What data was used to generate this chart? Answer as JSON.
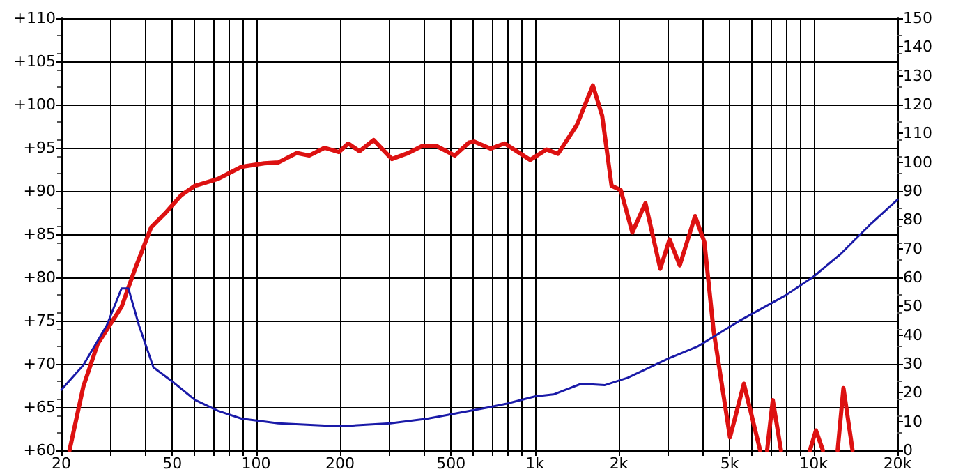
{
  "chart_data": {
    "type": "line",
    "log": "x",
    "grid": true,
    "marker": "none",
    "line_style": "solid",
    "xlim": [
      20,
      20000
    ],
    "xticks": [
      20,
      {
        "value": 30,
        "label": null
      },
      {
        "value": 40,
        "label": null
      },
      50,
      {
        "value": 60,
        "label": null
      },
      {
        "value": 70,
        "label": null
      },
      {
        "value": 80,
        "label": null
      },
      {
        "value": 90,
        "label": null
      },
      100,
      200,
      {
        "value": 300,
        "label": null
      },
      {
        "value": 400,
        "label": null
      },
      500,
      {
        "value": 600,
        "label": null
      },
      {
        "value": 700,
        "label": null
      },
      {
        "value": 800,
        "label": null
      },
      {
        "value": 900,
        "label": null
      },
      {
        "value": 1000,
        "label": "1k"
      },
      {
        "value": 2000,
        "label": "2k"
      },
      {
        "value": 3000,
        "label": null
      },
      {
        "value": 4000,
        "label": null
      },
      {
        "value": 5000,
        "label": "5k"
      },
      {
        "value": 6000,
        "label": null
      },
      {
        "value": 7000,
        "label": null
      },
      {
        "value": 8000,
        "label": null
      },
      {
        "value": 9000,
        "label": null
      },
      {
        "value": 10000,
        "label": "10k"
      },
      {
        "value": 20000,
        "label": "20k"
      }
    ],
    "ylim": [
      60,
      110
    ],
    "yticks": [
      {
        "value": 60,
        "label": "+60"
      },
      {
        "value": 65,
        "label": "+65"
      },
      {
        "value": 70,
        "label": "+70"
      },
      {
        "value": 75,
        "label": "+75"
      },
      {
        "value": 80,
        "label": "+80"
      },
      {
        "value": 85,
        "label": "+85"
      },
      {
        "value": 90,
        "label": "+90"
      },
      {
        "value": 95,
        "label": "+95"
      },
      {
        "value": 100,
        "label": "+100"
      },
      {
        "value": 105,
        "label": "+105"
      },
      {
        "value": 110,
        "label": "+110"
      }
    ],
    "y2lim": [
      0,
      150
    ],
    "y2ticks": [
      0,
      10,
      20,
      30,
      40,
      50,
      60,
      70,
      80,
      90,
      100,
      110,
      120,
      130,
      140,
      150
    ],
    "series": [
      {
        "color": "#dd1111",
        "x": [
          21.4,
          24,
          27,
          32.9,
          36.7,
          42,
          47.1,
          53.8,
          60.3,
          73,
          88.6,
          107,
          120,
          140,
          155,
          176,
          198,
          214,
          235,
          264,
          307,
          352,
          394,
          444,
          516,
          580,
          607,
          694,
          779,
          962,
          1101,
          1211,
          1413,
          1615,
          1744,
          1885,
          2034,
          2237,
          2494,
          2818,
          3043,
          3311,
          3758,
          4058,
          4375,
          5012,
          5623,
          6430,
          6600,
          6812,
          7140,
          7640,
          8600,
          9700,
          10200,
          10800,
          11500,
          12200,
          12800,
          13800
        ],
        "values": [
          60,
          67.4,
          72.3,
          76.6,
          80.9,
          85.8,
          87.4,
          89.5,
          90.6,
          91.4,
          92.8,
          93.2,
          93.3,
          94.4,
          94.1,
          95,
          94.5,
          95.5,
          94.6,
          95.9,
          93.7,
          94.4,
          95.2,
          95.2,
          94.1,
          95.6,
          95.7,
          94.9,
          95.5,
          93.6,
          94.8,
          94.3,
          97.6,
          102.2,
          98.7,
          90.6,
          90.1,
          85.2,
          88.6,
          81,
          84.4,
          81.4,
          87.1,
          84.1,
          73.9,
          61.5,
          67.7,
          60,
          null,
          60,
          65.8,
          60,
          null,
          60,
          62.3,
          60,
          null,
          60,
          67.2,
          60
        ]
      },
      {
        "color": "#1a1aa8",
        "axis": "y2",
        "x": [
          20,
          24,
          29.1,
          32.9,
          34.8,
          38,
          42.8,
          50,
          60.3,
          73,
          88.6,
          120,
          176,
          222,
          303,
          413,
          675,
          794,
          1000,
          1166,
          1468,
          1778,
          2154,
          3043,
          3831,
          5412,
          7943,
          10000,
          12590,
          15850,
          20000
        ],
        "values": [
          21,
          29.6,
          43.3,
          56.2,
          56.2,
          43.3,
          28.8,
          23.9,
          17.5,
          13.7,
          11,
          9.4,
          8.6,
          8.6,
          9.4,
          11,
          14.8,
          16.2,
          18.7,
          19.4,
          23.1,
          22.6,
          25.2,
          32,
          36,
          44.9,
          53.8,
          60.3,
          68.4,
          78.1,
          87
        ]
      }
    ]
  }
}
